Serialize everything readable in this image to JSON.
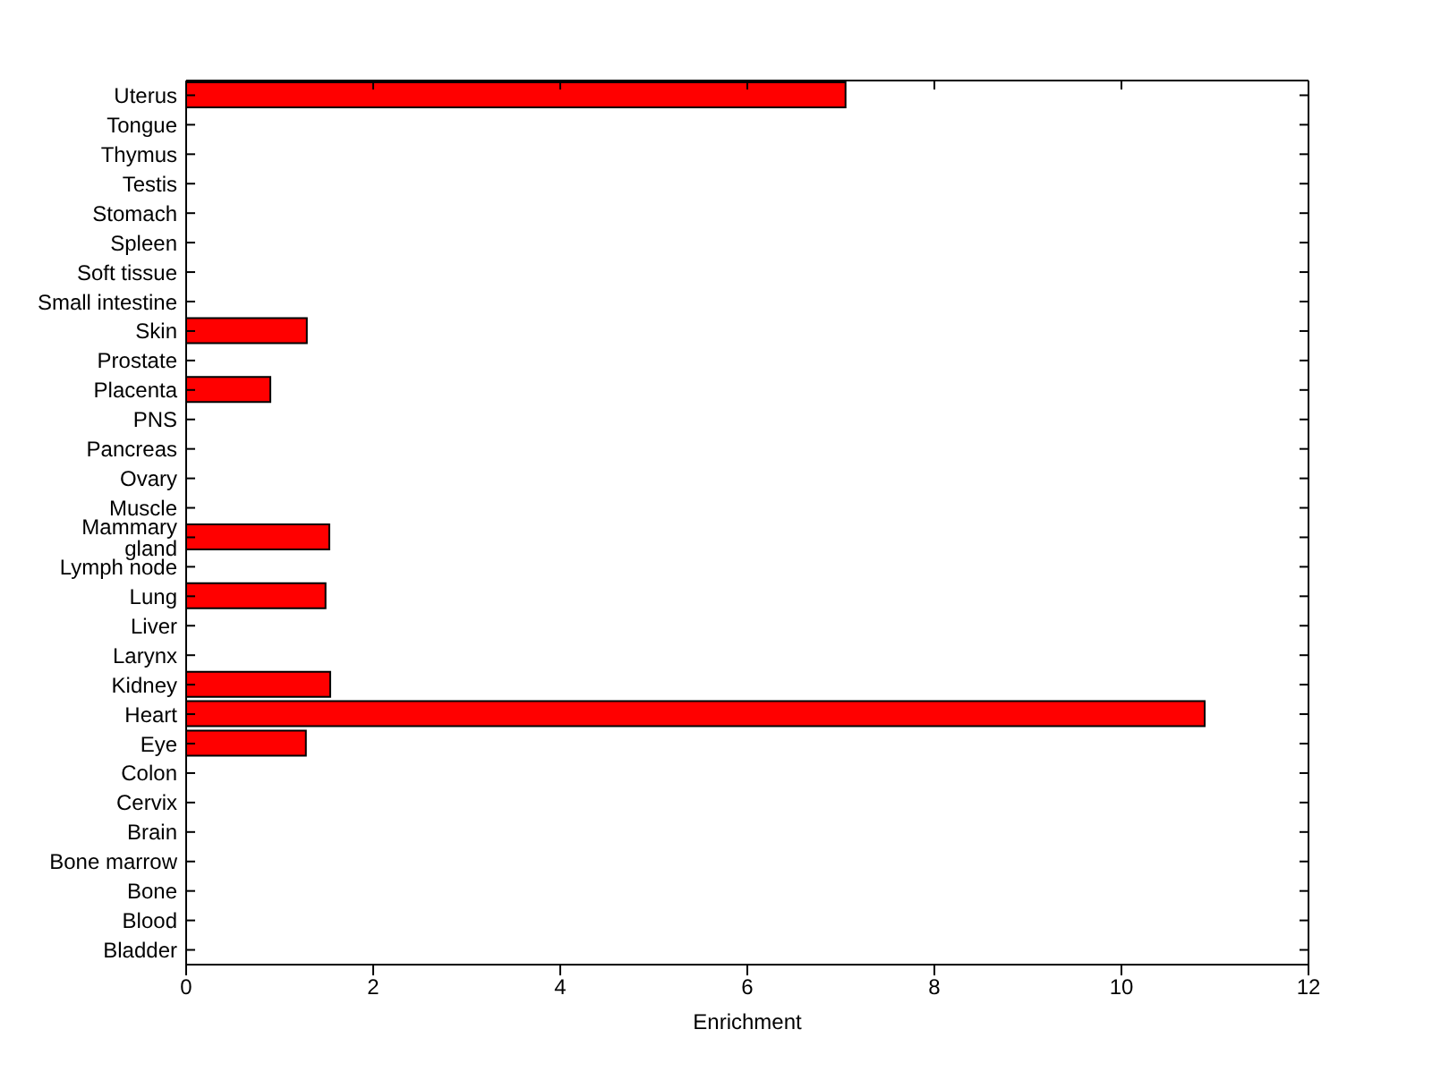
{
  "chart_data": {
    "type": "bar",
    "orientation": "horizontal",
    "xlabel": "Enrichment",
    "categories": [
      "Uterus",
      "Tongue",
      "Thymus",
      "Testis",
      "Stomach",
      "Spleen",
      "Soft tissue",
      "Small intestine",
      "Skin",
      "Prostate",
      "Placenta",
      "PNS",
      "Pancreas",
      "Ovary",
      "Muscle",
      "Mammary gland",
      "Lymph node",
      "Lung",
      "Liver",
      "Larynx",
      "Kidney",
      "Heart",
      "Eye",
      "Colon",
      "Cervix",
      "Brain",
      "Bone marrow",
      "Bone",
      "Blood",
      "Bladder"
    ],
    "values": [
      7.05,
      0,
      0,
      0,
      0,
      0,
      0,
      0,
      1.29,
      0,
      0.9,
      0,
      0,
      0,
      0,
      1.53,
      0,
      1.49,
      0,
      0,
      1.54,
      10.89,
      1.28,
      0,
      0,
      0,
      0,
      0,
      0,
      0
    ],
    "color": "#ff0000",
    "xlim": [
      0,
      12
    ],
    "xticks": [
      0,
      2,
      4,
      6,
      8,
      10,
      12
    ],
    "grid": false,
    "legend": false
  }
}
